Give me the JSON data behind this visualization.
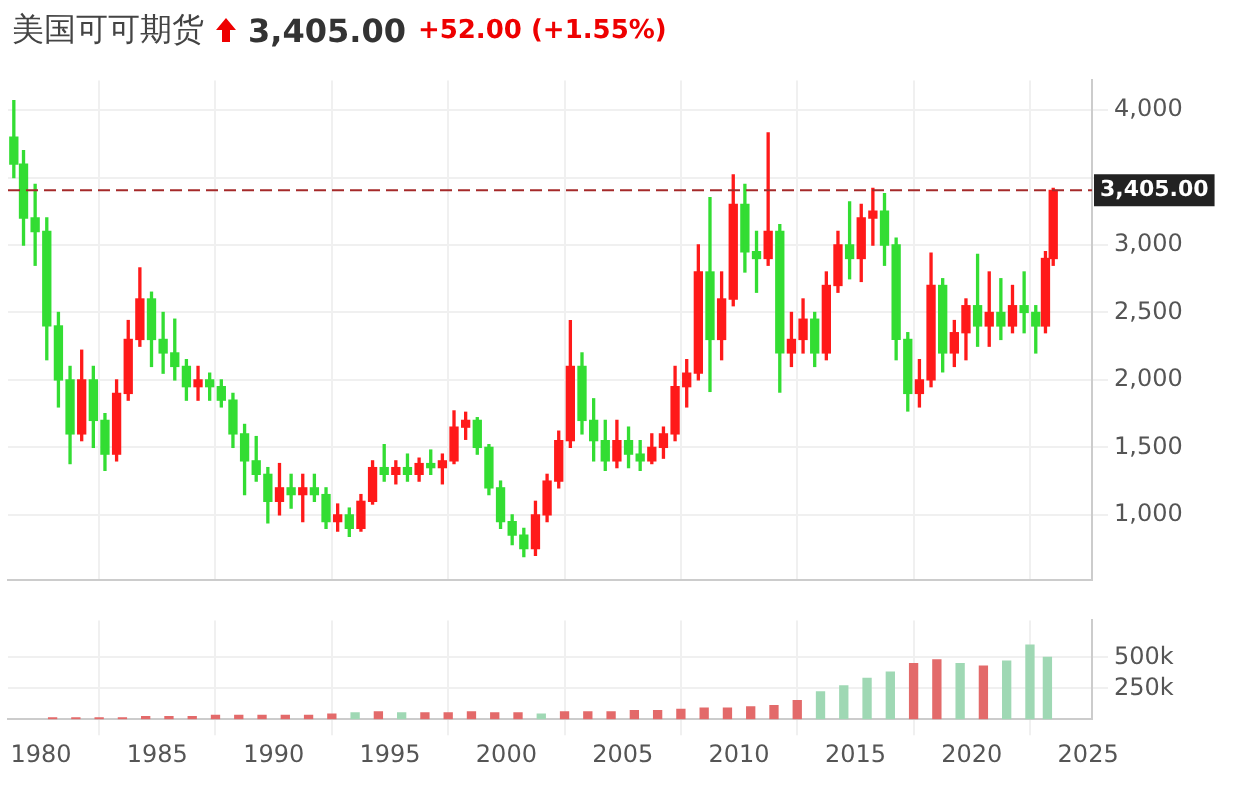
{
  "chart_data": [
    {
      "type": "candlestick",
      "title": "美国可可期货",
      "annotations": [
        "3,405.00",
        "+52.00 (+1.55%)"
      ],
      "x": [
        "1978-11",
        "1979-04",
        "1979-10",
        "1980-04",
        "1980-10",
        "1981-04",
        "1981-10",
        "1982-04",
        "1982-10",
        "1983-04",
        "1983-10",
        "1984-04",
        "1984-10",
        "1985-04",
        "1985-10",
        "1986-04",
        "1986-10",
        "1987-04",
        "1987-10",
        "1988-04",
        "1988-10",
        "1989-04",
        "1989-10",
        "1990-04",
        "1990-10",
        "1991-04",
        "1991-10",
        "1992-04",
        "1992-10",
        "1993-04",
        "1993-10",
        "1994-04",
        "1994-10",
        "1995-04",
        "1995-10",
        "1996-04",
        "1996-10",
        "1997-04",
        "1997-10",
        "1998-04",
        "1998-10",
        "1999-04",
        "1999-10",
        "2000-04",
        "2000-10",
        "2001-04",
        "2001-10",
        "2002-04",
        "2002-10",
        "2003-04",
        "2003-10",
        "2004-04",
        "2004-10",
        "2005-04",
        "2005-10",
        "2006-04",
        "2006-10",
        "2007-04",
        "2007-10",
        "2008-04",
        "2008-10",
        "2009-04",
        "2009-10",
        "2010-04",
        "2010-10",
        "2011-04",
        "2011-10",
        "2012-04",
        "2012-10",
        "2013-04",
        "2013-10",
        "2014-04",
        "2014-10",
        "2015-04",
        "2015-10",
        "2016-04",
        "2016-10",
        "2017-04",
        "2017-10",
        "2018-04",
        "2018-10",
        "2019-04",
        "2019-10",
        "2020-04",
        "2020-10",
        "2021-04",
        "2021-10",
        "2022-04",
        "2022-10",
        "2023-03",
        "2023-07"
      ],
      "ohlc": [
        [
          3800,
          4070,
          3500,
          3600
        ],
        [
          3600,
          3700,
          3000,
          3200
        ],
        [
          3200,
          3450,
          2850,
          3100
        ],
        [
          3100,
          3200,
          2150,
          2400
        ],
        [
          2400,
          2500,
          1800,
          2000
        ],
        [
          2000,
          2100,
          1380,
          1600
        ],
        [
          1600,
          2220,
          1550,
          2000
        ],
        [
          2000,
          2100,
          1500,
          1700
        ],
        [
          1700,
          1750,
          1330,
          1450
        ],
        [
          1450,
          2000,
          1400,
          1900
        ],
        [
          1900,
          2440,
          1850,
          2300
        ],
        [
          2300,
          2830,
          2250,
          2600
        ],
        [
          2600,
          2650,
          2100,
          2300
        ],
        [
          2300,
          2500,
          2050,
          2200
        ],
        [
          2200,
          2450,
          2000,
          2100
        ],
        [
          2100,
          2150,
          1850,
          1950
        ],
        [
          1950,
          2100,
          1850,
          2000
        ],
        [
          2000,
          2050,
          1850,
          1950
        ],
        [
          1950,
          2000,
          1800,
          1850
        ],
        [
          1850,
          1900,
          1500,
          1600
        ],
        [
          1600,
          1670,
          1150,
          1400
        ],
        [
          1400,
          1580,
          1250,
          1300
        ],
        [
          1300,
          1350,
          940,
          1100
        ],
        [
          1100,
          1380,
          1000,
          1200
        ],
        [
          1200,
          1300,
          1050,
          1150
        ],
        [
          1150,
          1300,
          950,
          1200
        ],
        [
          1200,
          1300,
          1100,
          1150
        ],
        [
          1150,
          1200,
          900,
          950
        ],
        [
          950,
          1080,
          880,
          1000
        ],
        [
          1000,
          1050,
          840,
          900
        ],
        [
          900,
          1150,
          880,
          1100
        ],
        [
          1100,
          1400,
          1080,
          1350
        ],
        [
          1350,
          1520,
          1250,
          1300
        ],
        [
          1300,
          1400,
          1230,
          1350
        ],
        [
          1350,
          1450,
          1250,
          1300
        ],
        [
          1300,
          1420,
          1250,
          1380
        ],
        [
          1380,
          1480,
          1300,
          1350
        ],
        [
          1350,
          1450,
          1230,
          1400
        ],
        [
          1400,
          1770,
          1380,
          1650
        ],
        [
          1650,
          1760,
          1560,
          1700
        ],
        [
          1700,
          1720,
          1450,
          1500
        ],
        [
          1500,
          1520,
          1150,
          1200
        ],
        [
          1200,
          1250,
          900,
          950
        ],
        [
          950,
          1000,
          780,
          850
        ],
        [
          850,
          900,
          690,
          750
        ],
        [
          750,
          1100,
          700,
          1000
        ],
        [
          1000,
          1300,
          950,
          1250
        ],
        [
          1250,
          1620,
          1200,
          1550
        ],
        [
          1550,
          2440,
          1500,
          2100
        ],
        [
          2100,
          2200,
          1600,
          1700
        ],
        [
          1700,
          1860,
          1400,
          1550
        ],
        [
          1550,
          1700,
          1330,
          1400
        ],
        [
          1400,
          1700,
          1350,
          1550
        ],
        [
          1550,
          1650,
          1350,
          1450
        ],
        [
          1450,
          1550,
          1330,
          1400
        ],
        [
          1400,
          1600,
          1380,
          1500
        ],
        [
          1500,
          1650,
          1420,
          1600
        ],
        [
          1600,
          2100,
          1550,
          1950
        ],
        [
          1950,
          2150,
          1800,
          2050
        ],
        [
          2050,
          3000,
          2000,
          2800
        ],
        [
          2800,
          3350,
          1915,
          2300
        ],
        [
          2300,
          2800,
          2150,
          2600
        ],
        [
          2600,
          3520,
          2550,
          3300
        ],
        [
          3300,
          3450,
          2800,
          2950
        ],
        [
          2950,
          3100,
          2650,
          2900
        ],
        [
          2900,
          3830,
          2850,
          3100
        ],
        [
          3100,
          3150,
          1910,
          2200
        ],
        [
          2200,
          2500,
          2100,
          2300
        ],
        [
          2300,
          2600,
          2200,
          2450
        ],
        [
          2450,
          2500,
          2100,
          2200
        ],
        [
          2200,
          2800,
          2150,
          2700
        ],
        [
          2700,
          3100,
          2650,
          3000
        ],
        [
          3000,
          3320,
          2750,
          2900
        ],
        [
          2900,
          3300,
          2730,
          3200
        ],
        [
          3200,
          3420,
          3000,
          3250
        ],
        [
          3250,
          3380,
          2850,
          3000
        ],
        [
          3000,
          3050,
          2150,
          2300
        ],
        [
          2300,
          2350,
          1770,
          1900
        ],
        [
          1900,
          2150,
          1800,
          2000
        ],
        [
          2000,
          2940,
          1950,
          2700
        ],
        [
          2700,
          2750,
          2060,
          2200
        ],
        [
          2200,
          2440,
          2100,
          2350
        ],
        [
          2350,
          2600,
          2150,
          2550
        ],
        [
          2550,
          2930,
          2250,
          2400
        ],
        [
          2400,
          2800,
          2250,
          2500
        ],
        [
          2500,
          2750,
          2300,
          2400
        ],
        [
          2400,
          2700,
          2350,
          2550
        ],
        [
          2550,
          2800,
          2350,
          2500
        ],
        [
          2500,
          2550,
          2200,
          2400
        ],
        [
          2400,
          2950,
          2350,
          2900
        ],
        [
          2900,
          3420,
          2850,
          3405
        ]
      ],
      "colors": [
        "#33dd33",
        "#33dd33",
        "#33dd33",
        "#33dd33",
        "#33dd33",
        "#33dd33",
        "#ff1a1a",
        "#33dd33",
        "#33dd33",
        "#ff1a1a",
        "#ff1a1a",
        "#ff1a1a",
        "#33dd33",
        "#33dd33",
        "#33dd33",
        "#33dd33",
        "#ff1a1a",
        "#33dd33",
        "#33dd33",
        "#33dd33",
        "#33dd33",
        "#33dd33",
        "#33dd33",
        "#ff1a1a",
        "#33dd33",
        "#ff1a1a",
        "#33dd33",
        "#33dd33",
        "#ff1a1a",
        "#33dd33",
        "#ff1a1a",
        "#ff1a1a",
        "#33dd33",
        "#ff1a1a",
        "#33dd33",
        "#ff1a1a",
        "#33dd33",
        "#ff1a1a",
        "#ff1a1a",
        "#ff1a1a",
        "#33dd33",
        "#33dd33",
        "#33dd33",
        "#33dd33",
        "#33dd33",
        "#ff1a1a",
        "#ff1a1a",
        "#ff1a1a",
        "#ff1a1a",
        "#33dd33",
        "#33dd33",
        "#33dd33",
        "#ff1a1a",
        "#33dd33",
        "#33dd33",
        "#ff1a1a",
        "#ff1a1a",
        "#ff1a1a",
        "#ff1a1a",
        "#ff1a1a",
        "#33dd33",
        "#ff1a1a",
        "#ff1a1a",
        "#33dd33",
        "#33dd33",
        "#ff1a1a",
        "#33dd33",
        "#ff1a1a",
        "#ff1a1a",
        "#33dd33",
        "#ff1a1a",
        "#ff1a1a",
        "#33dd33",
        "#ff1a1a",
        "#ff1a1a",
        "#33dd33",
        "#33dd33",
        "#33dd33",
        "#ff1a1a",
        "#ff1a1a",
        "#33dd33",
        "#ff1a1a",
        "#ff1a1a",
        "#33dd33",
        "#ff1a1a",
        "#33dd33",
        "#ff1a1a",
        "#33dd33",
        "#33dd33",
        "#ff1a1a",
        "#ff1a1a"
      ],
      "xlim": [
        "1978-08",
        "2025-03"
      ],
      "xticks": [
        "1980",
        "1985",
        "1990",
        "1995",
        "2000",
        "2005",
        "2010",
        "2015",
        "2020",
        "2025"
      ],
      "ylim": [
        520,
        4220
      ],
      "yticks": [
        {
          "value": 1000,
          "label": "1,000"
        },
        {
          "value": 1500,
          "label": "1,500"
        },
        {
          "value": 2000,
          "label": "2,000"
        },
        {
          "value": 2500,
          "label": "2,500"
        },
        {
          "value": 3000,
          "label": "3,000"
        },
        {
          "value": 3500,
          "label": null
        },
        {
          "value": 4000,
          "label": "4,000"
        }
      ],
      "ref_lines": [
        {
          "axis": "y",
          "value": 3405,
          "label": "3,405.00",
          "color": "#a52a2a",
          "line_style": "dashed"
        }
      ],
      "grid": true,
      "tick_labels": "y"
    },
    {
      "type": "bar",
      "x": [
        "1980-07",
        "1981-07",
        "1982-07",
        "1983-07",
        "1984-07",
        "1985-07",
        "1986-07",
        "1987-07",
        "1988-07",
        "1989-07",
        "1990-07",
        "1991-07",
        "1992-07",
        "1993-07",
        "1994-07",
        "1995-07",
        "1996-07",
        "1997-07",
        "1998-07",
        "1999-07",
        "2000-07",
        "2001-07",
        "2002-07",
        "2003-07",
        "2004-07",
        "2005-07",
        "2006-07",
        "2007-07",
        "2008-07",
        "2009-07",
        "2010-07",
        "2011-07",
        "2012-07",
        "2013-07",
        "2014-07",
        "2015-07",
        "2016-07",
        "2017-07",
        "2018-07",
        "2019-07",
        "2020-07",
        "2021-07",
        "2022-07",
        "2023-04"
      ],
      "values": [
        10000,
        10000,
        10000,
        10000,
        20000,
        20000,
        20000,
        30000,
        30000,
        30000,
        30000,
        30000,
        40000,
        50000,
        60000,
        50000,
        50000,
        50000,
        60000,
        50000,
        50000,
        40000,
        60000,
        60000,
        60000,
        70000,
        70000,
        80000,
        90000,
        90000,
        100000,
        110000,
        150000,
        220000,
        270000,
        330000,
        380000,
        450000,
        480000,
        450000,
        430000,
        470000,
        600000,
        500000
      ],
      "colors": [
        "#e36a6a",
        "#e36a6a",
        "#e36a6a",
        "#e36a6a",
        "#e36a6a",
        "#e36a6a",
        "#e36a6a",
        "#e36a6a",
        "#e36a6a",
        "#e36a6a",
        "#e36a6a",
        "#e36a6a",
        "#e36a6a",
        "#9fd8b4",
        "#e36a6a",
        "#9fd8b4",
        "#e36a6a",
        "#e36a6a",
        "#e36a6a",
        "#e36a6a",
        "#e36a6a",
        "#9fd8b4",
        "#e36a6a",
        "#e36a6a",
        "#e36a6a",
        "#e36a6a",
        "#e36a6a",
        "#e36a6a",
        "#e36a6a",
        "#e36a6a",
        "#e36a6a",
        "#e36a6a",
        "#e36a6a",
        "#9fd8b4",
        "#9fd8b4",
        "#9fd8b4",
        "#9fd8b4",
        "#e36a6a",
        "#e36a6a",
        "#9fd8b4",
        "#e36a6a",
        "#9fd8b4",
        "#9fd8b4",
        "#9fd8b4"
      ],
      "xlim": [
        "1978-08",
        "2025-03"
      ],
      "xticks": [
        "1980",
        "1985",
        "1990",
        "1995",
        "2000",
        "2005",
        "2010",
        "2015",
        "2020",
        "2025"
      ],
      "ylim": [
        0,
        800000
      ],
      "yticks": [
        {
          "value": 250000,
          "label": "250k"
        },
        {
          "value": 500000,
          "label": "500k"
        }
      ],
      "grid": true
    }
  ]
}
